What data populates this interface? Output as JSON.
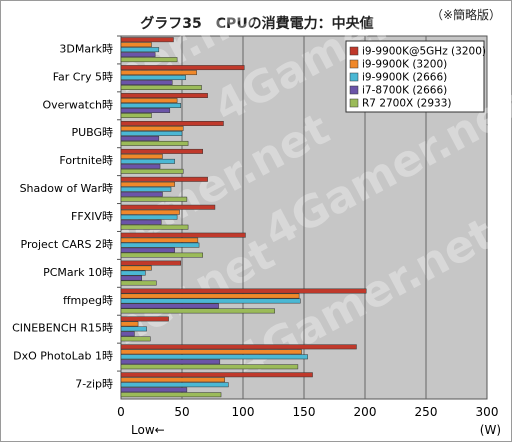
{
  "chart_data": {
    "type": "bar",
    "orientation": "horizontal",
    "title": "グラフ35　CPUの消費電力：中央値",
    "note": "（※簡略版）",
    "xlabel_left": "Low←",
    "xunit": "(W)",
    "xlim": [
      0,
      300
    ],
    "xticks": [
      0,
      50,
      100,
      150,
      200,
      250,
      300
    ],
    "grid": true,
    "legend_position": "top-right",
    "watermark": "4Gamer.net",
    "categories": [
      "3DMark時",
      "Far Cry 5時",
      "Overwatch時",
      "PUBG時",
      "Fortnite時",
      "Shadow of War時",
      "FFXIV時",
      "Project CARS 2時",
      "PCMark 10時",
      "ffmpeg時",
      "CINEBENCH R15時",
      "DxO PhotoLab 1時",
      "7-zip時"
    ],
    "series": [
      {
        "name": "i9-9900K@5GHz (3200)",
        "color": "#c0392b",
        "values": [
          43,
          101,
          71,
          84,
          67,
          71,
          77,
          102,
          49,
          201,
          39,
          193,
          157
        ]
      },
      {
        "name": "i9-9900K (3200)",
        "color": "#f0882a",
        "values": [
          25,
          62,
          46,
          51,
          34,
          44,
          48,
          63,
          25,
          146,
          14,
          148,
          85
        ]
      },
      {
        "name": "i9-9900K (2666)",
        "color": "#4bb8d4",
        "values": [
          31,
          53,
          49,
          50,
          44,
          41,
          46,
          64,
          20,
          147,
          21,
          153,
          88
        ]
      },
      {
        "name": "i7-8700K (2666)",
        "color": "#6b54a8",
        "values": [
          28,
          42,
          40,
          31,
          32,
          34,
          33,
          44,
          17,
          80,
          11,
          81,
          54
        ]
      },
      {
        "name": "R7 2700X (2933)",
        "color": "#9bbb59",
        "values": [
          46,
          66,
          25,
          55,
          51,
          54,
          55,
          67,
          29,
          126,
          24,
          145,
          82
        ]
      }
    ]
  }
}
